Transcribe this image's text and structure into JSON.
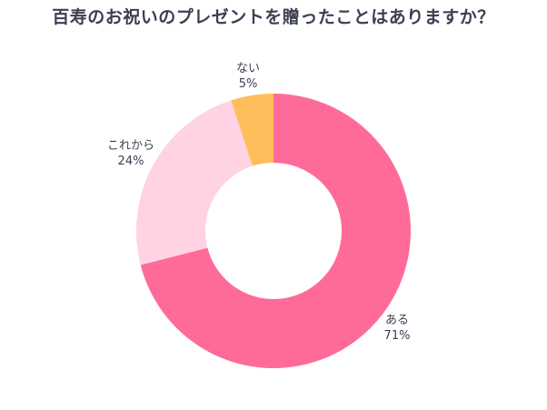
{
  "chart_data": {
    "type": "pie",
    "variant": "donut",
    "title": "百寿のお祝いのプレゼントを贈ったことはありますか？",
    "slices": [
      {
        "label": "ある",
        "value": 71,
        "value_label": "71%",
        "color": "#ff6b98"
      },
      {
        "label": "これから",
        "value": 24,
        "value_label": "24%",
        "color": "#ffd3e3"
      },
      {
        "label": "ない",
        "value": 5,
        "value_label": "5%",
        "color": "#ffbe5c"
      }
    ],
    "legend": "none"
  }
}
